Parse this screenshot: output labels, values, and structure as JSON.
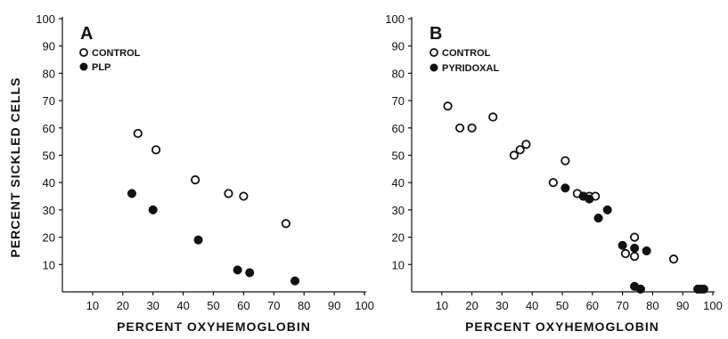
{
  "chart_data": [
    {
      "type": "scatter",
      "panel_label": "A",
      "xlabel": "PERCENT OXYHEMOGLOBIN",
      "ylabel": "PERCENT SICKLED CELLS",
      "xlim": [
        0,
        100
      ],
      "ylim": [
        0,
        100
      ],
      "x_ticks": [
        "10",
        "20",
        "30",
        "40",
        "50",
        "60",
        "70",
        "80",
        "90",
        "100"
      ],
      "y_ticks": [
        "10",
        "20",
        "30",
        "40",
        "50",
        "60",
        "70",
        "80",
        "90",
        "100"
      ],
      "legend_position": "top-left",
      "series": [
        {
          "name": "CONTROL",
          "marker": "open-circle",
          "points": [
            [
              25,
              58
            ],
            [
              31,
              52
            ],
            [
              44,
              41
            ],
            [
              55,
              36
            ],
            [
              60,
              35
            ],
            [
              74,
              25
            ]
          ]
        },
        {
          "name": "PLP",
          "marker": "filled-circle",
          "points": [
            [
              23,
              36
            ],
            [
              30,
              30
            ],
            [
              45,
              19
            ],
            [
              58,
              8
            ],
            [
              62,
              7
            ],
            [
              77,
              4
            ]
          ]
        }
      ]
    },
    {
      "type": "scatter",
      "panel_label": "B",
      "xlabel": "PERCENT OXYHEMOGLOBIN",
      "ylabel": "",
      "xlim": [
        0,
        100
      ],
      "ylim": [
        0,
        100
      ],
      "x_ticks": [
        "10",
        "20",
        "30",
        "40",
        "50",
        "60",
        "70",
        "80",
        "90",
        "100"
      ],
      "y_ticks": [
        "10",
        "20",
        "30",
        "40",
        "50",
        "60",
        "70",
        "80",
        "90",
        "100"
      ],
      "legend_position": "top-left",
      "series": [
        {
          "name": "CONTROL",
          "marker": "open-circle",
          "points": [
            [
              12,
              68
            ],
            [
              16,
              60
            ],
            [
              20,
              60
            ],
            [
              27,
              64
            ],
            [
              34,
              50
            ],
            [
              36,
              52
            ],
            [
              38,
              54
            ],
            [
              47,
              40
            ],
            [
              51,
              48
            ],
            [
              55,
              36
            ],
            [
              57,
              35
            ],
            [
              59,
              35
            ],
            [
              61,
              35
            ],
            [
              71,
              14
            ],
            [
              74,
              13
            ],
            [
              74,
              20
            ],
            [
              87,
              12
            ]
          ]
        },
        {
          "name": "PYRIDOXAL",
          "marker": "filled-circle",
          "points": [
            [
              51,
              38
            ],
            [
              57,
              35
            ],
            [
              59,
              34
            ],
            [
              62,
              27
            ],
            [
              65,
              30
            ],
            [
              70,
              17
            ],
            [
              74,
              16
            ],
            [
              78,
              15
            ],
            [
              74,
              2
            ],
            [
              76,
              1
            ],
            [
              95,
              1
            ],
            [
              96,
              1
            ],
            [
              97,
              1
            ]
          ]
        }
      ]
    }
  ]
}
